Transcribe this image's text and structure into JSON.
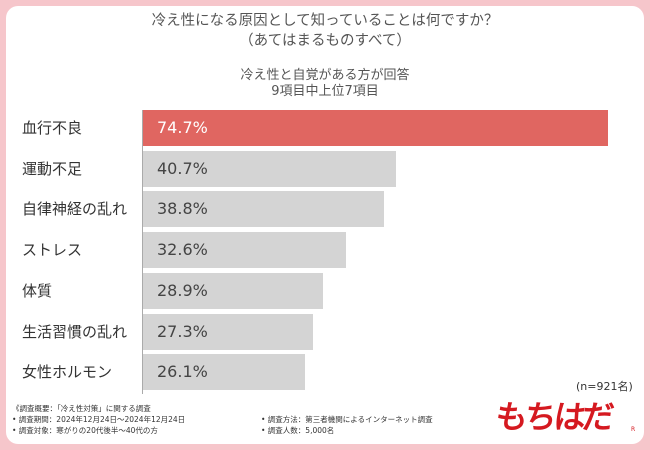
{
  "title_line1": "冷え性になる原因として知っていることは何ですか？",
  "title_line2": "（あてはまるものすべて）",
  "subtitle_line1": "冷え性と自覚がある方が回答",
  "subtitle_line2": "9項目中上位7項目",
  "sample_size": "(n=921名)",
  "footnotes": {
    "overview": "《調査概要：「冷え性対策」に関する調査",
    "period": "• 調査期間：2024年12月24日〜2024年12月24日",
    "target": "• 調査対象：寒がりの20代後半〜40代の方",
    "method": "• 調査方法：第三者機関によるインターネット調査",
    "count": "• 調査人数：5,000名"
  },
  "logo_text": "もちはだ",
  "logo_mark": "R",
  "colors": {
    "highlight": "#e06661",
    "bar": "#d4d4d4",
    "frame": "#f6c6cb",
    "logo": "#d51920"
  },
  "chart_data": {
    "type": "bar",
    "orientation": "horizontal",
    "title": "冷え性になる原因として知っていることは何ですか？（あてはまるものすべて）",
    "categories": [
      "血行不良",
      "運動不足",
      "自律神経の乱れ",
      "ストレス",
      "体質",
      "生活習慣の乱れ",
      "女性ホルモン"
    ],
    "values": [
      74.7,
      40.7,
      38.8,
      32.6,
      28.9,
      27.3,
      26.1
    ],
    "labels": [
      "74.7%",
      "40.7%",
      "38.8%",
      "32.6%",
      "28.9%",
      "27.3%",
      "26.1%"
    ],
    "unit": "%",
    "xlim": [
      0,
      100
    ],
    "highlight_index": 0,
    "grid": false,
    "legend": "none"
  }
}
